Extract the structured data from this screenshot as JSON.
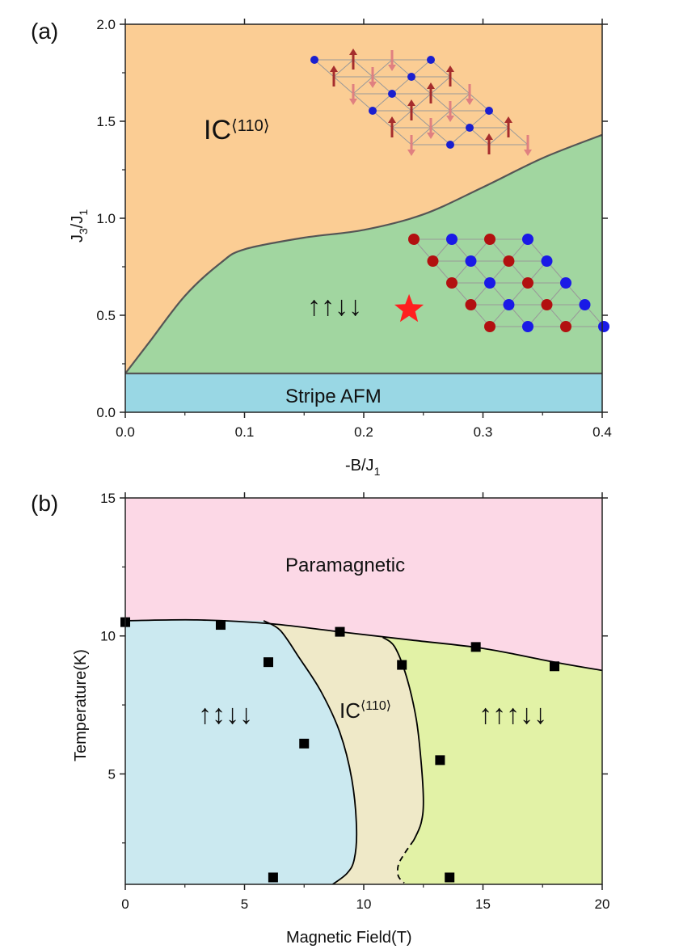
{
  "chart_data": [
    {
      "type": "area",
      "panel_label": "(a)",
      "xlabel": "-B/J",
      "xlabel_sub": "1",
      "ylabel": "J",
      "ylabel_sub_1": "3",
      "ylabel_mid": "/J",
      "ylabel_sub_2": "1",
      "xlim": [
        0.0,
        0.4
      ],
      "ylim": [
        0.0,
        2.0
      ],
      "x_ticks": [
        "0.0",
        "0.1",
        "0.2",
        "0.3",
        "0.4"
      ],
      "y_ticks": [
        "0.0",
        "0.5",
        "1.0",
        "1.5",
        "2.0"
      ],
      "regions": [
        {
          "name": "IC",
          "superscript": "⟨110⟩",
          "color": "#fbcd94"
        },
        {
          "name": "↑↑↓↓",
          "color": "#a1d6a0"
        },
        {
          "name": "Stripe AFM",
          "color": "#99d7e4"
        }
      ],
      "boundary_stripe": {
        "y": 0.2
      },
      "boundary_ic_uudd": {
        "x": [
          0.0,
          0.02,
          0.05,
          0.08,
          0.1,
          0.15,
          0.2,
          0.25,
          0.3,
          0.35,
          0.4
        ],
        "y": [
          0.2,
          0.36,
          0.6,
          0.77,
          0.84,
          0.9,
          0.94,
          1.02,
          1.16,
          1.31,
          1.43
        ]
      },
      "marker": {
        "shape": "star",
        "x": 0.238,
        "y": 0.53,
        "color": "#ff1f1f"
      }
    },
    {
      "type": "area",
      "panel_label": "(b)",
      "xlabel": "Magnetic Field(T)",
      "ylabel": "Temperature(K)",
      "xlim": [
        0,
        20
      ],
      "ylim": [
        1,
        15
      ],
      "x_ticks": [
        "0",
        "5",
        "10",
        "15",
        "20"
      ],
      "y_ticks": [
        "5",
        "10",
        "15"
      ],
      "regions": [
        {
          "name": "Paramagnetic",
          "color": "#fcd8e6"
        },
        {
          "name": "↑↕↓↓",
          "color": "#cbe9f0"
        },
        {
          "name": "IC",
          "superscript": "⟨110⟩",
          "color": "#efe9c8"
        },
        {
          "name": "↑↑↑↓↓",
          "color": "#e2f2a6"
        }
      ],
      "points": {
        "x": [
          0.0,
          4.0,
          6.0,
          7.5,
          9.0,
          11.6,
          13.2,
          14.7,
          18.0,
          6.2,
          13.6
        ],
        "y": [
          10.5,
          10.4,
          9.05,
          6.1,
          10.15,
          8.95,
          5.5,
          9.6,
          8.9,
          1.25,
          1.25
        ]
      },
      "para_boundary": {
        "x": [
          0,
          3,
          6,
          9,
          12,
          15,
          18,
          20
        ],
        "y": [
          10.55,
          10.58,
          10.45,
          10.15,
          9.85,
          9.55,
          9.05,
          8.75
        ]
      },
      "boundary_left": {
        "x": [
          5.8,
          6.5,
          7.3,
          8.2,
          9.0,
          9.5,
          9.7,
          9.6,
          9.3,
          8.7
        ],
        "y": [
          10.55,
          10.2,
          9.2,
          8.0,
          6.5,
          4.8,
          3.0,
          1.9,
          1.4,
          1.0
        ]
      },
      "boundary_right": {
        "x": [
          10.8,
          11.3,
          11.8,
          12.2,
          12.4,
          12.5,
          12.4,
          12.1
        ],
        "y": [
          9.95,
          9.6,
          8.5,
          7.0,
          5.5,
          4.0,
          3.2,
          2.6
        ]
      },
      "boundary_right_dashed": {
        "x": [
          12.1,
          11.7,
          11.45,
          11.45,
          11.7
        ],
        "y": [
          2.6,
          2.1,
          1.7,
          1.3,
          1.05
        ]
      }
    }
  ]
}
